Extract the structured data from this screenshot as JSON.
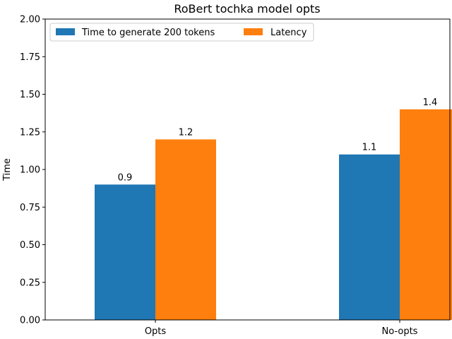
{
  "chart_data": {
    "type": "bar",
    "title": "RoBert tochka model opts",
    "xlabel": "",
    "ylabel": "Time",
    "categories": [
      "Opts",
      "No-opts"
    ],
    "series": [
      {
        "name": "Time to generate 200 tokens",
        "values": [
          0.9,
          1.1
        ],
        "color": "#1f77b4"
      },
      {
        "name": "Latency",
        "values": [
          1.2,
          1.4
        ],
        "color": "#ff7f0e"
      }
    ],
    "data_labels": [
      [
        "0.9",
        "1.1"
      ],
      [
        "1.2",
        "1.4"
      ]
    ],
    "ylim": [
      0,
      2.0
    ],
    "yticks": [
      "0.00",
      "0.25",
      "0.50",
      "0.75",
      "1.00",
      "1.25",
      "1.50",
      "1.75",
      "2.00"
    ],
    "grid": false,
    "legend_position": "upper-left"
  }
}
